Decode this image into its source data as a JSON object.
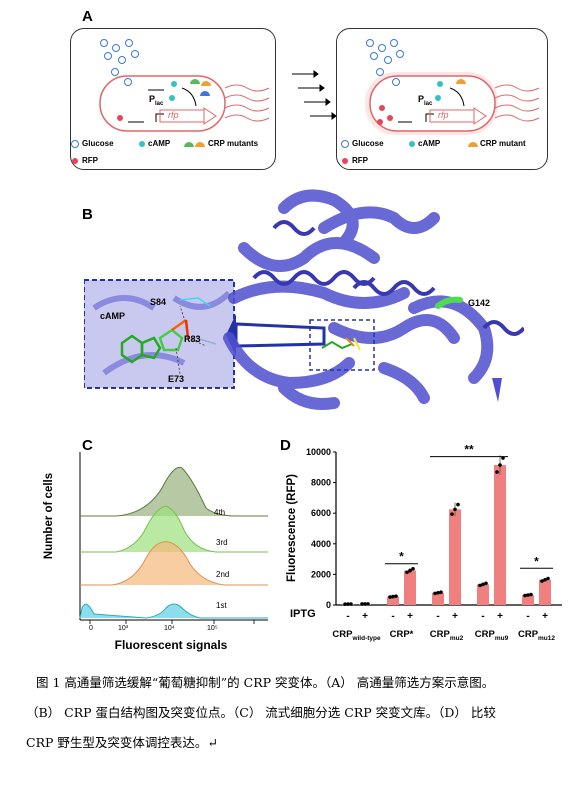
{
  "panelA": {
    "label": "A",
    "plac": "P",
    "plac_sub": "lac",
    "rfp": "rfp",
    "legend_left": {
      "glucose": "Glucose",
      "camp": "cAMP",
      "mutants": "CRP mutants",
      "rfp": "RFP"
    },
    "legend_right": {
      "glucose": "Glucose",
      "camp": "cAMP",
      "mutant": "CRP mutant",
      "rfp": "RFP"
    },
    "colors": {
      "cell_outline": "#e06666",
      "glucose": "#3c78d8",
      "camp": "#33c3c3",
      "crp_green": "#5cb85c",
      "crp_orange": "#f0a030",
      "rfp_dot": "#e8455a",
      "glow": "#f4a0a0"
    }
  },
  "panelB": {
    "label": "B",
    "inset_labels": {
      "s84": "S84",
      "camp": "cAMP",
      "r83": "R83",
      "e73": "E73"
    },
    "g142": "G142",
    "colors": {
      "protein": "#5050d0",
      "inset_border": "#2233aa",
      "mutation": "#4fdc4f"
    }
  },
  "panelC": {
    "label": "C",
    "ylabel": "Number of cells",
    "xlabel": "Fluorescent signals",
    "rounds": [
      "4th",
      "3rd",
      "2nd",
      "1st"
    ],
    "xticks": [
      "0",
      "10³",
      "10⁴",
      "10⁵"
    ],
    "colors": [
      "#7a9a5a",
      "#9be07a",
      "#f6b87a",
      "#66d3e6"
    ]
  },
  "chart_data": {
    "type": "bar",
    "ylabel": "Fluorescence (RFP)",
    "ylim": [
      0,
      10000
    ],
    "yticks": [
      "0",
      "2000",
      "4000",
      "6000",
      "8000",
      "10000"
    ],
    "xrow_label": "IPTG",
    "iptg": [
      "-",
      "+",
      "-",
      "+",
      "-",
      "+",
      "-",
      "+",
      "-",
      "+"
    ],
    "groups": [
      {
        "name": "CRP",
        "sub": "wild-type",
        "values": [
          60,
          70
        ]
      },
      {
        "name": "CRP*",
        "sub": "",
        "values": [
          550,
          2250
        ]
      },
      {
        "name": "CRP",
        "sub": "mu2",
        "values": [
          800,
          6250
        ]
      },
      {
        "name": "CRP",
        "sub": "mu9",
        "values": [
          1350,
          9150
        ]
      },
      {
        "name": "CRP",
        "sub": "mu12",
        "values": [
          650,
          1650
        ]
      }
    ],
    "significance": [
      "*",
      "**",
      "*"
    ],
    "bar_color": "#f08080",
    "panel_label": "D"
  },
  "caption": {
    "line1": "图 1 高通量筛选缓解“葡萄糖抑制”的 CRP 突变体。（A） 高通量筛选方案示意图。",
    "line2": "（B） CRP 蛋白结构图及突变位点。（C） 流式细胞分选 CRP 突变文库。（D） 比较",
    "line3": "CRP 野生型及突变体调控表达。↵"
  }
}
